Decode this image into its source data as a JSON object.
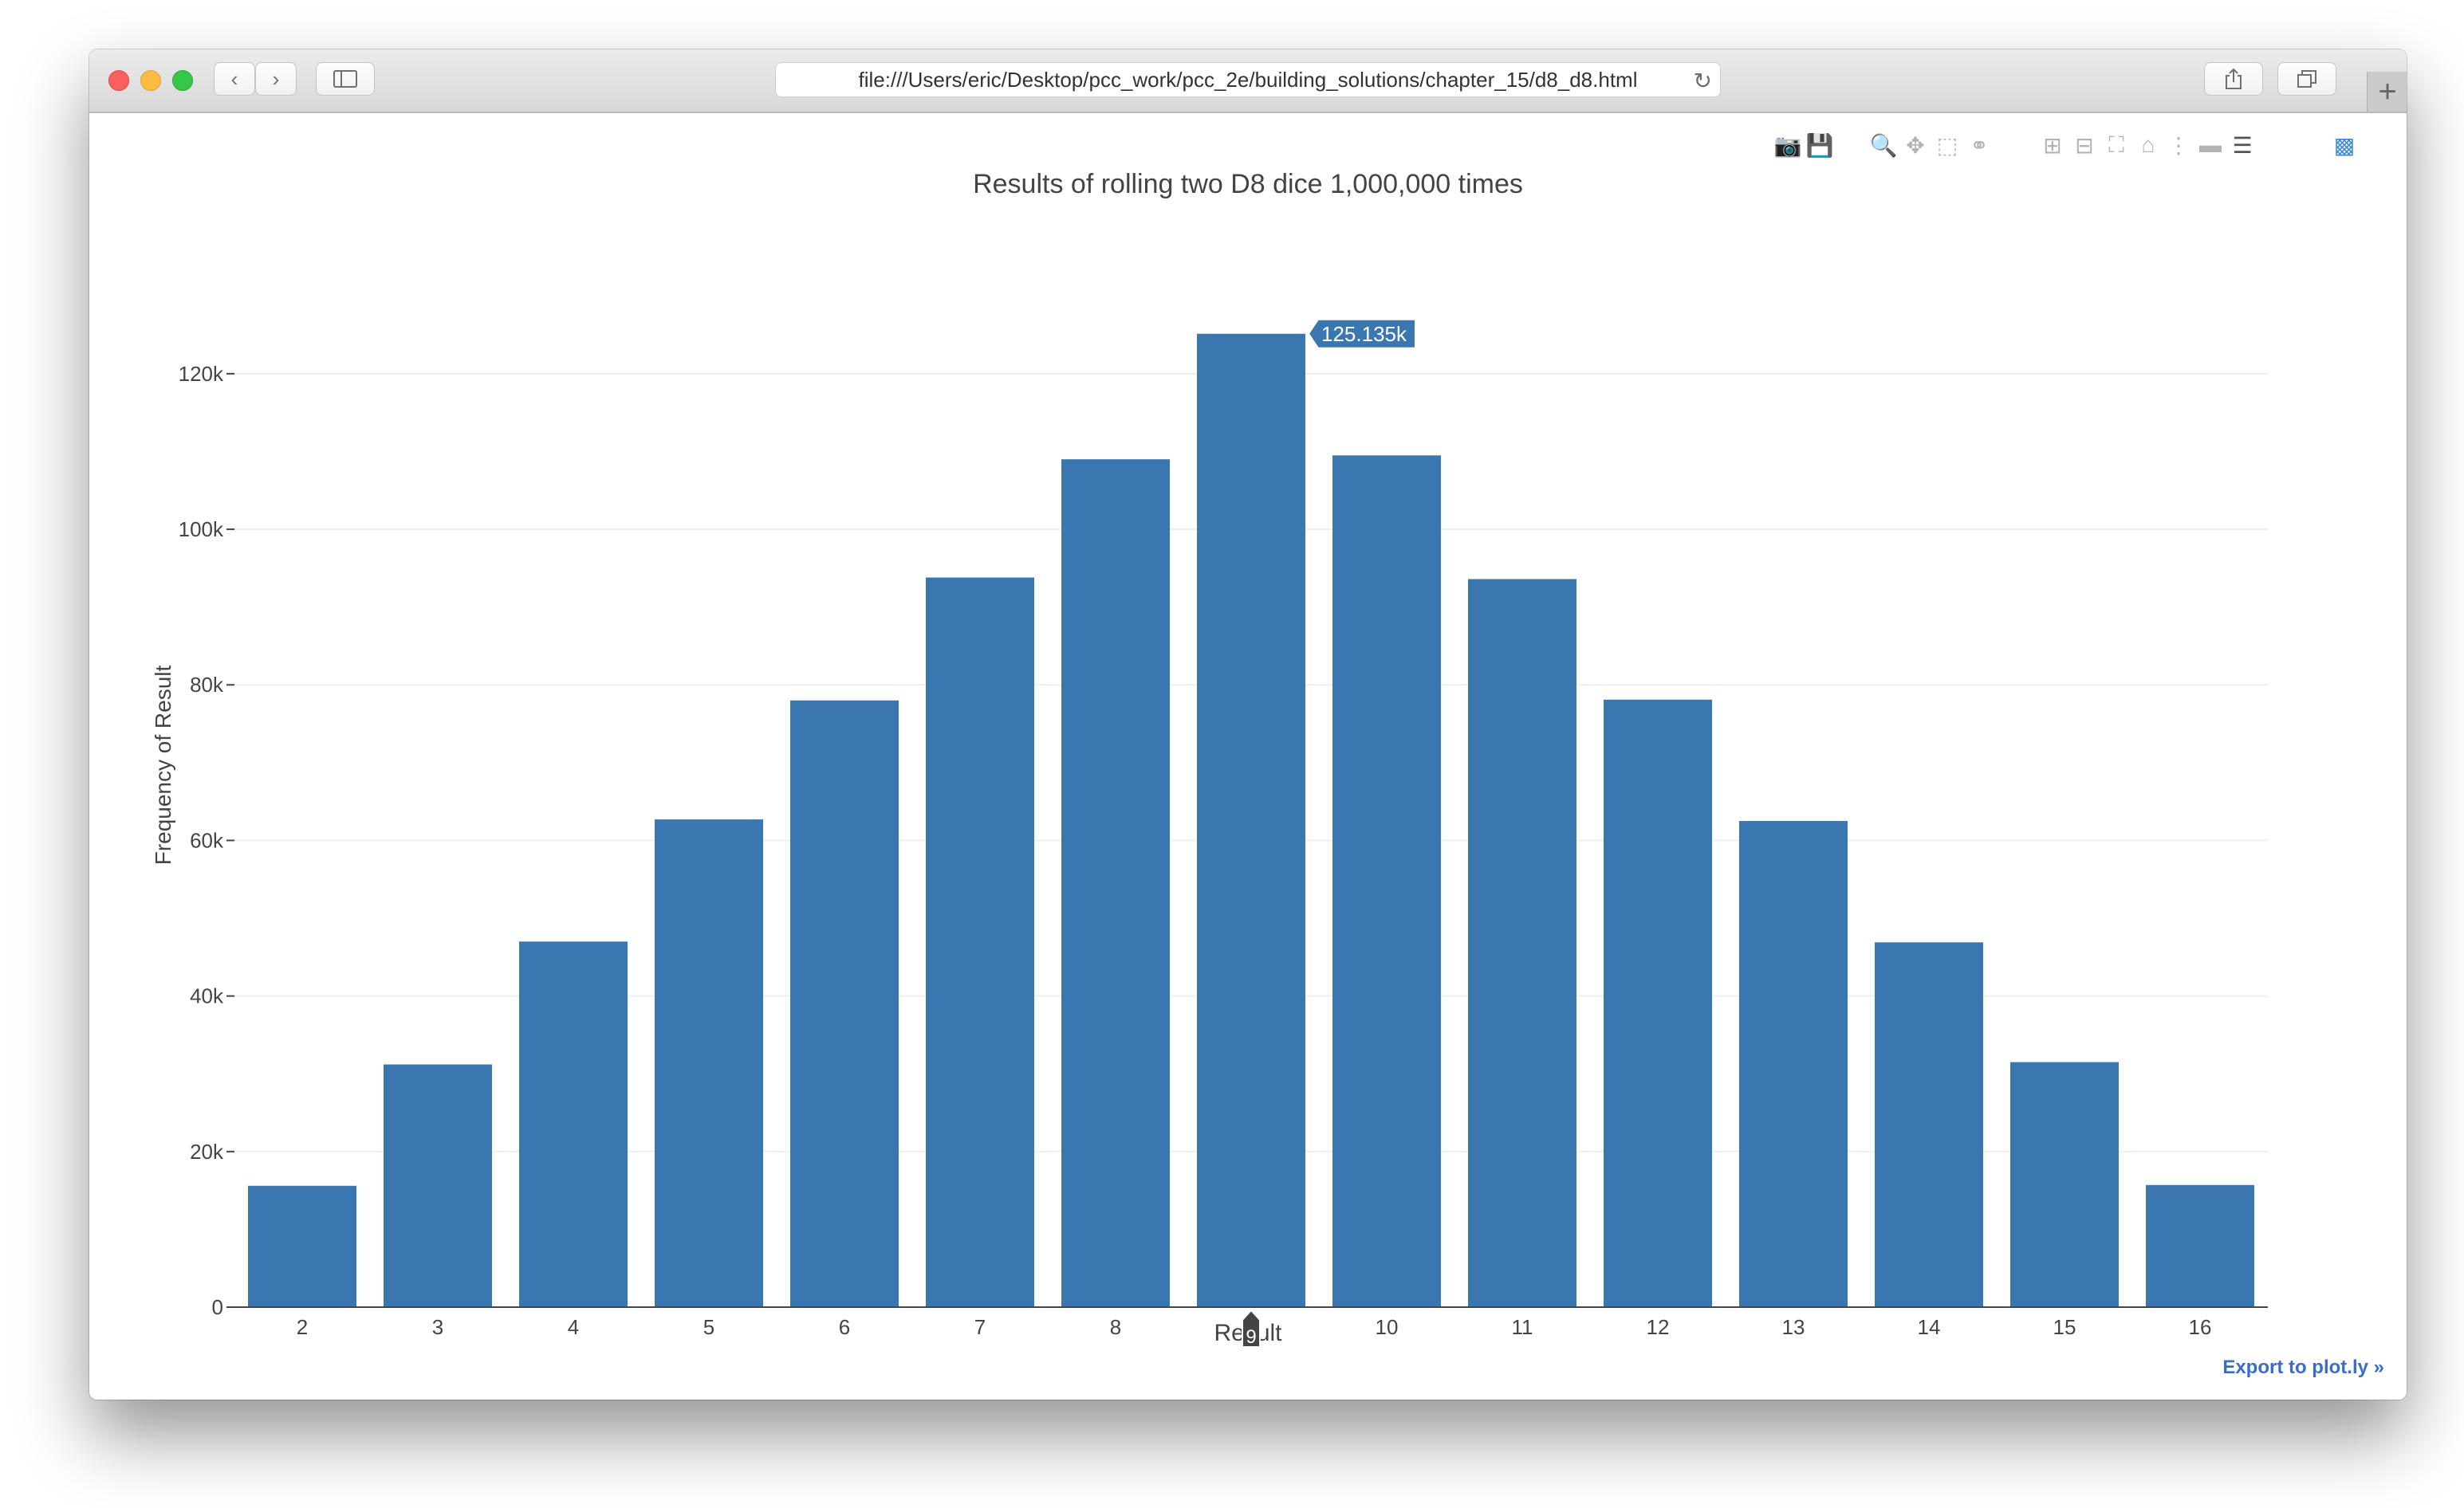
{
  "window": {
    "url": "file:///Users/eric/Desktop/pcc_work/pcc_2e/building_solutions/chapter_15/d8_d8.html",
    "new_tab_label": "+"
  },
  "modebar": {
    "icons": [
      "camera-icon",
      "save-icon",
      "zoom-icon",
      "pan-icon",
      "box-select-icon",
      "lasso-select-icon",
      "zoom-in-icon",
      "zoom-out-icon",
      "autoscale-icon",
      "reset-axes-icon",
      "spike-lines-icon",
      "hover-closest-icon",
      "hover-compare-icon",
      "plotly-logo-icon"
    ]
  },
  "export_link": "Export to plot.ly »",
  "chart_data": {
    "type": "bar",
    "title": "Results of rolling two D8 dice 1,000,000 times",
    "xlabel": "Result",
    "ylabel": "Frequency of Result",
    "categories": [
      "2",
      "3",
      "4",
      "5",
      "6",
      "7",
      "8",
      "9",
      "10",
      "11",
      "12",
      "13",
      "14",
      "15",
      "16"
    ],
    "values": [
      15600,
      31200,
      47000,
      62700,
      78000,
      93800,
      109000,
      125135,
      109500,
      93600,
      78100,
      62500,
      46900,
      31500,
      15700
    ],
    "ylim": [
      0,
      133000
    ],
    "yticks": [
      0,
      20000,
      40000,
      60000,
      80000,
      100000,
      120000
    ],
    "ytick_labels": [
      "0",
      "20k",
      "40k",
      "60k",
      "80k",
      "100k",
      "120k"
    ],
    "grid": true,
    "bar_color": "#3a76af",
    "hover": {
      "category": "9",
      "value_label": "125.135k",
      "x_label": "9"
    }
  }
}
